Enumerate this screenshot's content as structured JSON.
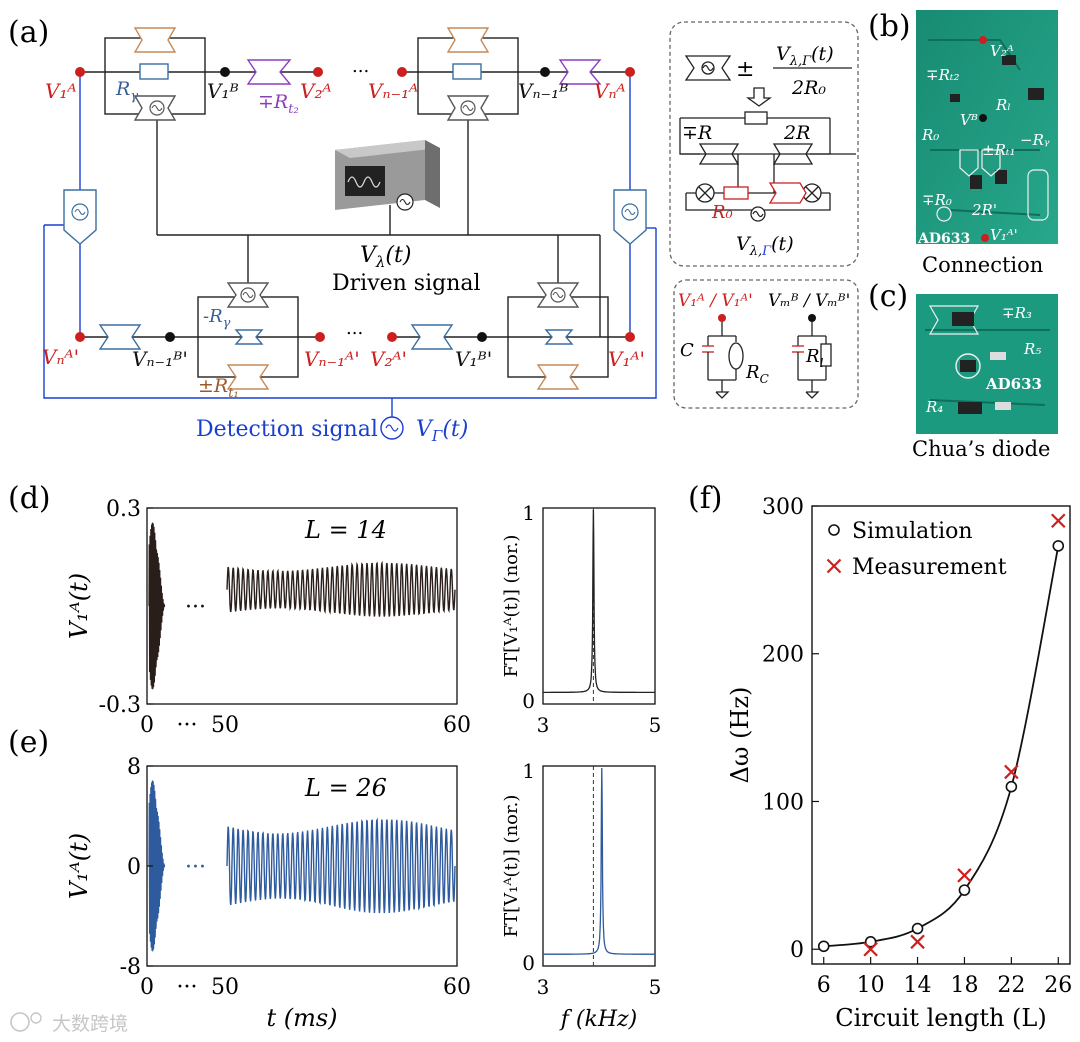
{
  "panels": {
    "a": "(a)",
    "b": "(b)",
    "c": "(c)",
    "d": "(d)",
    "e": "(e)",
    "f": "(f)"
  },
  "circuit": {
    "node_top": [
      "V₁ᴬ",
      "V₁ᴮ",
      "V₂ᴬ",
      "Vₙ₋₁ᴬ",
      "Vₙ₋₁ᴮ",
      "Vₙᴬ"
    ],
    "node_bottom": [
      "Vₙᴬ'",
      "Vₙ₋₁ᴮ'",
      "Vₙ₋₁ᴬ'",
      "V₂ᴬ'",
      "V₁ᴮ'",
      "V₁ᴬ'"
    ],
    "r_gamma": "R",
    "r_gamma_sub": "γ",
    "neg_r_gamma": "-R",
    "mp_rt2": "∓R",
    "rt2_sub": "t₂",
    "pm_rt1": "±R",
    "rt1_sub": "t₁",
    "ellipsis": "...",
    "driven_symbol": "V",
    "driven_sub": "λ",
    "driven_arg": "(t)",
    "driven_label": "Driven signal",
    "detection_label": "Detection signal",
    "detection_symbol": "V",
    "detection_sub": "Γ",
    "detection_arg": "(t)"
  },
  "inset_top": {
    "pm": "±",
    "frac_num": "V",
    "frac_num_sub": "λ,Γ",
    "frac_num_arg": "(t)",
    "frac_den": "2R₀",
    "mp_r": "∓R",
    "two_r": "2R",
    "r0": "R₀",
    "source": "V",
    "source_sub_a": "λ,",
    "source_sub_b": "Γ",
    "source_arg": "(t)"
  },
  "inset_bottom": {
    "node_a": "V₁ᴬ / V₁ᴬ'",
    "node_b": "Vₘᴮ / Vₘᴮ'",
    "c": "C",
    "rc": "R",
    "rc_sub": "C",
    "rl": "R",
    "rl_sub": "l"
  },
  "pcb_b": {
    "caption": "Connection",
    "labels": [
      "V₂ᴬ",
      "∓Rₜ₂",
      "Vᴮ",
      "Rₗ",
      "R₀",
      "±Rₜ₁",
      "−Rᵧ",
      "∓R₀",
      "2R'",
      "AD633",
      "V₁ᴬ'"
    ]
  },
  "pcb_c": {
    "caption": "Chua’s diode",
    "labels": [
      "∓R₃",
      "R₅",
      "AD633",
      "R₄"
    ]
  },
  "colors": {
    "red": "#cc1f1f",
    "blue": "#1a3fd0",
    "purple": "#8a3fbf",
    "brown": "#9c5a2a",
    "steel": "#3a5f95",
    "trace_d": "#2a1e1a",
    "trace_e": "#2e5a9e",
    "pcb": "#1c9a80"
  },
  "chart_data": [
    {
      "id": "d-time",
      "type": "line",
      "label": "L = 14",
      "ylabel": "V₁ᴬ(t)",
      "ylim": [
        -0.3,
        0.3
      ],
      "yticks": [
        "0.3",
        "-0.3"
      ],
      "xticks": [
        "0",
        "···",
        "50",
        "60"
      ],
      "xlabel": "",
      "amp_transient": 0.28,
      "amp_steady": 0.07,
      "steady_offset": 0.05
    },
    {
      "id": "d-fft",
      "type": "line",
      "ylabel": "FT[V₁ᴬ(t)] (nor.)",
      "xlim": [
        3,
        5
      ],
      "ylim": [
        0,
        1
      ],
      "xticks": [
        "3",
        "5"
      ],
      "yticks": [
        "1",
        "0"
      ],
      "peak_khz": 3.9,
      "reference_khz": 3.9
    },
    {
      "id": "e-time",
      "type": "line",
      "label": "L = 26",
      "ylabel": "V₁ᴬ(t)",
      "ylim": [
        -8,
        8
      ],
      "yticks": [
        "8",
        "0",
        "-8"
      ],
      "xticks": [
        "0",
        "···",
        "50",
        "60"
      ],
      "xlabel": "t (ms)",
      "amp_transient": 7.5,
      "amp_steady": 3.2,
      "steady_offset": 0
    },
    {
      "id": "e-fft",
      "type": "line",
      "ylabel": "FT[V₁ᴬ(t)] (nor.)",
      "xlabel": "f (kHz)",
      "xlim": [
        3,
        5
      ],
      "ylim": [
        0,
        1
      ],
      "xticks": [
        "3",
        "5"
      ],
      "yticks": [
        "1",
        "0"
      ],
      "peak_khz": 4.05,
      "reference_khz": 3.9
    },
    {
      "id": "f",
      "type": "scatter",
      "xlabel": "Circuit length (L)",
      "ylabel": "Δω (Hz)",
      "x": [
        6,
        10,
        14,
        18,
        22,
        26
      ],
      "xlim": [
        5,
        27
      ],
      "ylim": [
        -10,
        300
      ],
      "xticks": [
        6,
        10,
        14,
        18,
        22,
        26
      ],
      "yticks": [
        0,
        100,
        200,
        300
      ],
      "series": [
        {
          "name": "Simulation",
          "marker": "circle",
          "values": [
            2,
            5,
            14,
            40,
            110,
            273
          ]
        },
        {
          "name": "Measurement",
          "marker": "x",
          "values": [
            null,
            0,
            5,
            50,
            120,
            290
          ]
        }
      ]
    }
  ],
  "watermark": "大数跨境"
}
